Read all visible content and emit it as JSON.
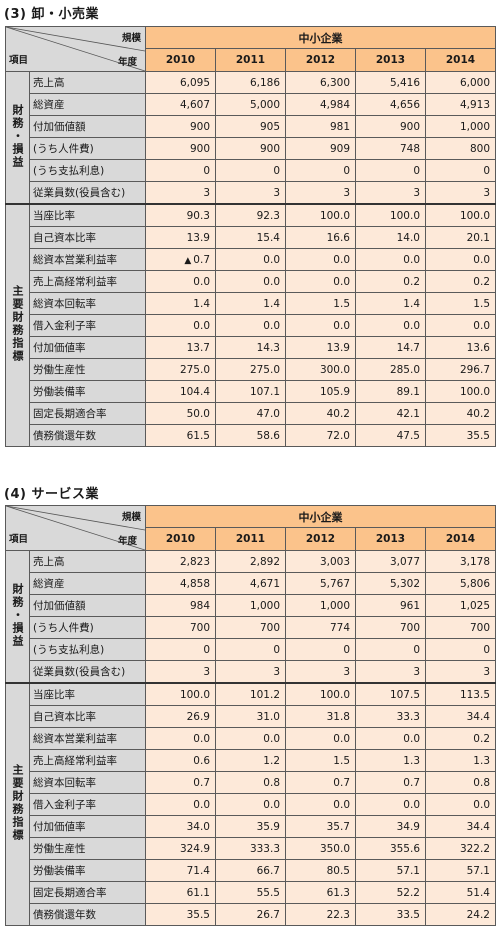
{
  "sections": [
    {
      "title": "(3) 卸・小売業",
      "header": {
        "scale_label": "規模",
        "year_label": "年度",
        "item_label": "項目",
        "group": "中小企業",
        "years": [
          "2010",
          "2011",
          "2012",
          "2013",
          "2014"
        ]
      },
      "groups": [
        {
          "name": "財務・損益",
          "rows": [
            {
              "label": "売上高",
              "values": [
                "6,095",
                "6,186",
                "6,300",
                "5,416",
                "6,000"
              ]
            },
            {
              "label": "総資産",
              "values": [
                "4,607",
                "5,000",
                "4,984",
                "4,656",
                "4,913"
              ]
            },
            {
              "label": "付加価値額",
              "values": [
                "900",
                "905",
                "981",
                "900",
                "1,000"
              ]
            },
            {
              "label": "(うち人件費)",
              "values": [
                "900",
                "900",
                "909",
                "748",
                "800"
              ]
            },
            {
              "label": "(うち支払利息)",
              "values": [
                "0",
                "0",
                "0",
                "0",
                "0"
              ]
            },
            {
              "label": "従業員数(役員含む)",
              "values": [
                "3",
                "3",
                "3",
                "3",
                "3"
              ]
            }
          ]
        },
        {
          "name": "主要財務指標",
          "rows": [
            {
              "label": "当座比率",
              "values": [
                "90.3",
                "92.3",
                "100.0",
                "100.0",
                "100.0"
              ]
            },
            {
              "label": "自己資本比率",
              "values": [
                "13.9",
                "15.4",
                "16.6",
                "14.0",
                "20.1"
              ]
            },
            {
              "label": "総資本営業利益率",
              "values": [
                "0.7",
                "0.0",
                "0.0",
                "0.0",
                "0.0"
              ],
              "neg_marker": "▲"
            },
            {
              "label": "売上高経常利益率",
              "values": [
                "0.0",
                "0.0",
                "0.0",
                "0.2",
                "0.2"
              ]
            },
            {
              "label": "総資本回転率",
              "values": [
                "1.4",
                "1.4",
                "1.5",
                "1.4",
                "1.5"
              ]
            },
            {
              "label": "借入金利子率",
              "values": [
                "0.0",
                "0.0",
                "0.0",
                "0.0",
                "0.0"
              ]
            },
            {
              "label": "付加価値率",
              "values": [
                "13.7",
                "14.3",
                "13.9",
                "14.7",
                "13.6"
              ]
            },
            {
              "label": "労働生産性",
              "values": [
                "275.0",
                "275.0",
                "300.0",
                "285.0",
                "296.7"
              ]
            },
            {
              "label": "労働装備率",
              "values": [
                "104.4",
                "107.1",
                "105.9",
                "89.1",
                "100.0"
              ]
            },
            {
              "label": "固定長期適合率",
              "values": [
                "50.0",
                "47.0",
                "40.2",
                "42.1",
                "40.2"
              ]
            },
            {
              "label": "債務償還年数",
              "values": [
                "61.5",
                "58.6",
                "72.0",
                "47.5",
                "35.5"
              ]
            }
          ]
        }
      ]
    },
    {
      "title": "(4) サービス業",
      "header": {
        "scale_label": "規模",
        "year_label": "年度",
        "item_label": "項目",
        "group": "中小企業",
        "years": [
          "2010",
          "2011",
          "2012",
          "2013",
          "2014"
        ]
      },
      "groups": [
        {
          "name": "財務・損益",
          "rows": [
            {
              "label": "売上高",
              "values": [
                "2,823",
                "2,892",
                "3,003",
                "3,077",
                "3,178"
              ]
            },
            {
              "label": "総資産",
              "values": [
                "4,858",
                "4,671",
                "5,767",
                "5,302",
                "5,806"
              ]
            },
            {
              "label": "付加価値額",
              "values": [
                "984",
                "1,000",
                "1,000",
                "961",
                "1,025"
              ]
            },
            {
              "label": "(うち人件費)",
              "values": [
                "700",
                "700",
                "774",
                "700",
                "700"
              ]
            },
            {
              "label": "(うち支払利息)",
              "values": [
                "0",
                "0",
                "0",
                "0",
                "0"
              ]
            },
            {
              "label": "従業員数(役員含む)",
              "values": [
                "3",
                "3",
                "3",
                "3",
                "3"
              ]
            }
          ]
        },
        {
          "name": "主要財務指標",
          "rows": [
            {
              "label": "当座比率",
              "values": [
                "100.0",
                "101.2",
                "100.0",
                "107.5",
                "113.5"
              ]
            },
            {
              "label": "自己資本比率",
              "values": [
                "26.9",
                "31.0",
                "31.8",
                "33.3",
                "34.4"
              ]
            },
            {
              "label": "総資本営業利益率",
              "values": [
                "0.0",
                "0.0",
                "0.0",
                "0.0",
                "0.2"
              ]
            },
            {
              "label": "売上高経常利益率",
              "values": [
                "0.6",
                "1.2",
                "1.5",
                "1.3",
                "1.3"
              ]
            },
            {
              "label": "総資本回転率",
              "values": [
                "0.7",
                "0.8",
                "0.7",
                "0.7",
                "0.8"
              ]
            },
            {
              "label": "借入金利子率",
              "values": [
                "0.0",
                "0.0",
                "0.0",
                "0.0",
                "0.0"
              ]
            },
            {
              "label": "付加価値率",
              "values": [
                "34.0",
                "35.9",
                "35.7",
                "34.9",
                "34.4"
              ]
            },
            {
              "label": "労働生産性",
              "values": [
                "324.9",
                "333.3",
                "350.0",
                "355.6",
                "322.2"
              ]
            },
            {
              "label": "労働装備率",
              "values": [
                "71.4",
                "66.7",
                "80.5",
                "57.1",
                "57.1"
              ]
            },
            {
              "label": "固定長期適合率",
              "values": [
                "61.1",
                "55.5",
                "61.3",
                "52.2",
                "51.4"
              ]
            },
            {
              "label": "債務償還年数",
              "values": [
                "35.5",
                "26.7",
                "22.3",
                "33.5",
                "24.2"
              ]
            }
          ]
        }
      ]
    }
  ]
}
